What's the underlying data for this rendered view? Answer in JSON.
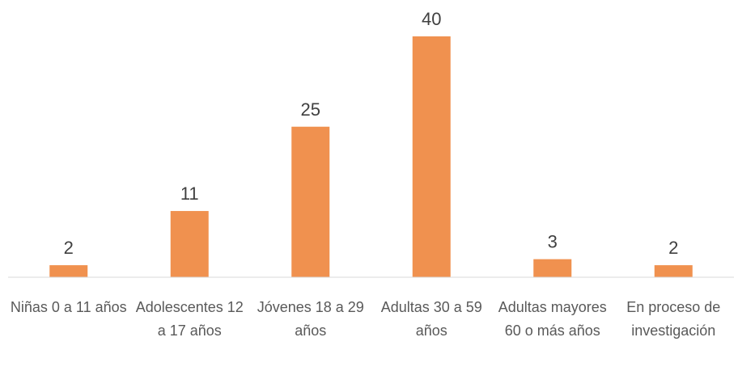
{
  "chart_data": {
    "type": "bar",
    "categories": [
      "Niñas 0 a 11 años",
      "Adolescentes 12 a 17 años",
      "Jóvenes 18 a 29 años",
      "Adultas 30 a 59 años",
      "Adultas mayores 60 o más años",
      "En proceso de investigación"
    ],
    "values": [
      2,
      11,
      25,
      40,
      3,
      2
    ],
    "color": "#f0914f",
    "ylim": [
      0,
      40
    ]
  }
}
